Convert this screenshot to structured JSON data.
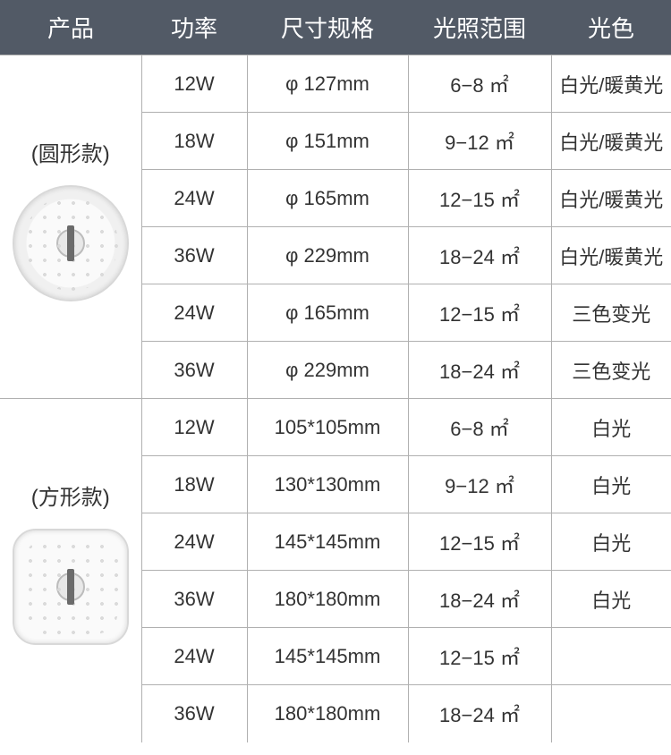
{
  "header": {
    "product": "产品",
    "power": "功率",
    "size": "尺寸规格",
    "range": "光照范围",
    "color": "光色"
  },
  "groups": [
    {
      "label": "(圆形款)",
      "shape": "round",
      "rows": [
        {
          "power": "12W",
          "size": "φ 127mm",
          "range": "6−8 ㎡",
          "color": "白光/暖黄光"
        },
        {
          "power": "18W",
          "size": "φ 151mm",
          "range": "9−12 ㎡",
          "color": "白光/暖黄光"
        },
        {
          "power": "24W",
          "size": "φ 165mm",
          "range": "12−15 ㎡",
          "color": "白光/暖黄光"
        },
        {
          "power": "36W",
          "size": "φ 229mm",
          "range": "18−24 ㎡",
          "color": "白光/暖黄光"
        },
        {
          "power": "24W",
          "size": "φ 165mm",
          "range": "12−15 ㎡",
          "color": "三色变光"
        },
        {
          "power": "36W",
          "size": "φ 229mm",
          "range": "18−24 ㎡",
          "color": "三色变光"
        }
      ]
    },
    {
      "label": "(方形款)",
      "shape": "square",
      "rows": [
        {
          "power": "12W",
          "size": "105*105mm",
          "range": "6−8 ㎡",
          "color": "白光"
        },
        {
          "power": "18W",
          "size": "130*130mm",
          "range": "9−12 ㎡",
          "color": "白光"
        },
        {
          "power": "24W",
          "size": "145*145mm",
          "range": "12−15 ㎡",
          "color": "白光"
        },
        {
          "power": "36W",
          "size": "180*180mm",
          "range": "18−24 ㎡",
          "color": "白光"
        },
        {
          "power": "24W",
          "size": "145*145mm",
          "range": "12−15 ㎡",
          "color": ""
        },
        {
          "power": "36W",
          "size": "180*180mm",
          "range": "18−24 ㎡",
          "color": ""
        }
      ]
    }
  ]
}
